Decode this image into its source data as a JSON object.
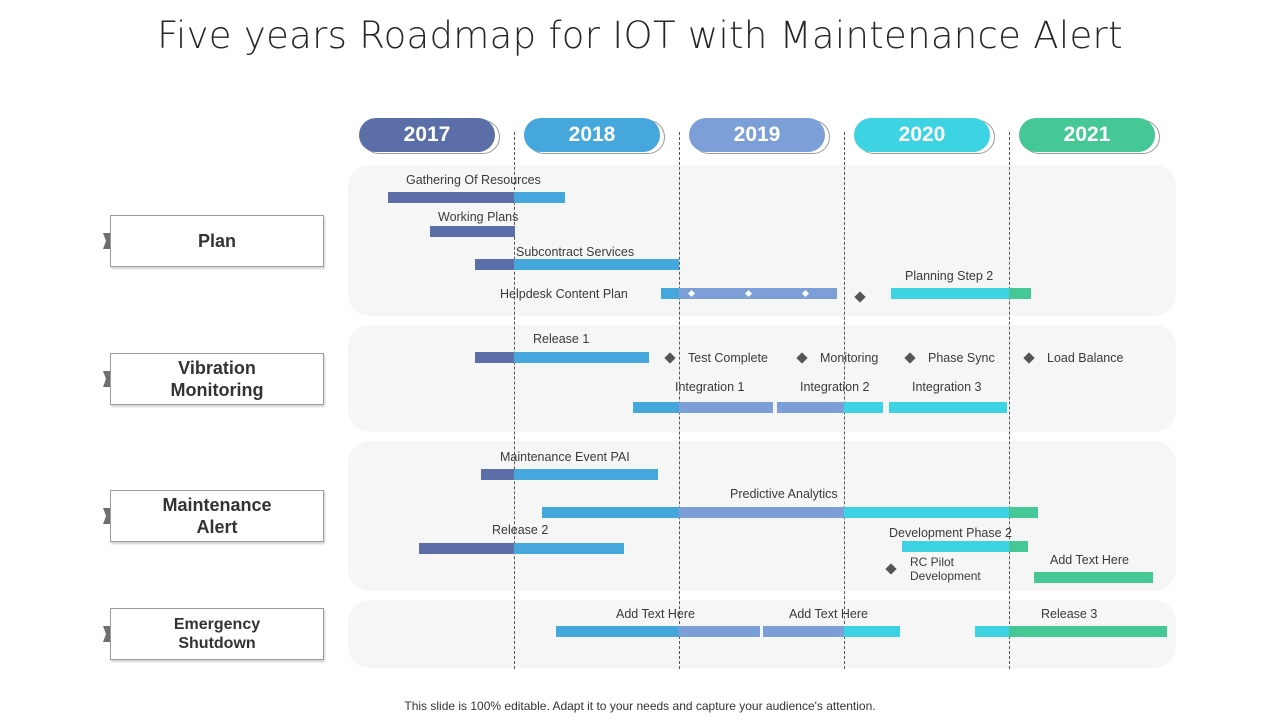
{
  "title": "Five years Roadmap for IOT with Maintenance Alert",
  "footer": "This slide is 100% editable. Adapt it to your needs and capture your audience's attention.",
  "colors": {
    "y2017": "#5b6ea8",
    "y2018": "#45a7dc",
    "y2019": "#7b9fd6",
    "y2020": "#3ed3e3",
    "y2021": "#45c896",
    "band": "#f6f6f6",
    "diamond": "#555555"
  },
  "years": [
    "2017",
    "2018",
    "2019",
    "2020",
    "2021"
  ],
  "rows": {
    "plan": "Plan",
    "vibration": "Vibration Monitoring",
    "maintenance": "Maintenance Alert",
    "emergency": "Emergency Shutdown"
  },
  "plan": {
    "gathering": "Gathering Of Resources",
    "working": "Working Plans",
    "subcontract": "Subcontract Services",
    "helpdesk": "Helpdesk Content Plan",
    "planning2": "Planning Step 2"
  },
  "vibration": {
    "release1": "Release 1",
    "test_complete": "Test Complete",
    "monitoring": "Monitoring",
    "phase_sync": "Phase Sync",
    "load_balance": "Load Balance",
    "integration1": "Integration  1",
    "integration2": "Integration  2",
    "integration3": "Integration  3"
  },
  "maintenance": {
    "event_pai": "Maintenance Event PAI",
    "predictive": "Predictive  Analytics",
    "release2": "Release 2",
    "dev_phase2": "Development  Phase 2",
    "rc_pilot_1": "RC Pilot",
    "rc_pilot_2": "Development",
    "add_text": "Add Text Here"
  },
  "emergency": {
    "add_text_1": "Add Text Here",
    "add_text_2": "Add Text Here",
    "release3": "Release 3"
  }
}
